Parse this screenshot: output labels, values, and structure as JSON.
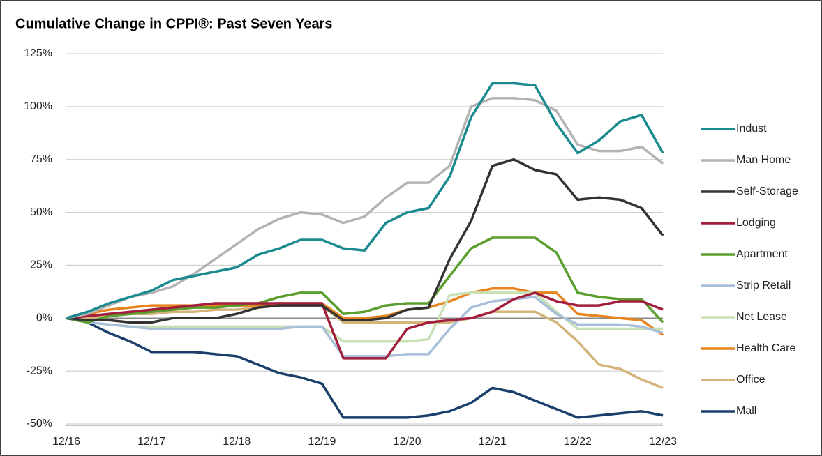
{
  "chart_data": {
    "type": "line",
    "title": "Cumulative Change in CPPI®: Past Seven Years",
    "categories": [
      "12/16",
      null,
      null,
      null,
      "12/17",
      null,
      null,
      null,
      "12/18",
      null,
      null,
      null,
      "12/19",
      null,
      null,
      null,
      "12/20",
      null,
      null,
      null,
      "12/21",
      null,
      null,
      null,
      "12/22",
      null,
      null,
      null,
      "12/23"
    ],
    "ylim": [
      -50,
      125
    ],
    "yticks": [
      {
        "value": -50,
        "label": "-50%"
      },
      {
        "value": -25,
        "label": "-25%"
      },
      {
        "value": 0,
        "label": "0%"
      },
      {
        "value": 25,
        "label": "25%"
      },
      {
        "value": 50,
        "label": "50%"
      },
      {
        "value": 75,
        "label": "75%"
      },
      {
        "value": 100,
        "label": "100%"
      },
      {
        "value": 125,
        "label": "125%"
      }
    ],
    "grid": true,
    "legend": "right",
    "series": [
      {
        "name": "Indust",
        "color": "#1b8a8f",
        "values": [
          0,
          3,
          7,
          10,
          13,
          18,
          20,
          22,
          24,
          30,
          33,
          37,
          37,
          33,
          32,
          45,
          50,
          52,
          67,
          95,
          111,
          111,
          110,
          92,
          78,
          84,
          93,
          96,
          78
        ]
      },
      {
        "name": "Man Home",
        "color": "#b3b3b3",
        "values": [
          0,
          2,
          6,
          10,
          12,
          15,
          21,
          28,
          35,
          42,
          47,
          50,
          49,
          45,
          48,
          57,
          64,
          64,
          72,
          100,
          104,
          104,
          103,
          98,
          82,
          79,
          79,
          81,
          73
        ]
      },
      {
        "name": "Self-Storage",
        "color": "#333333",
        "values": [
          0,
          -1,
          -1,
          -2,
          -2,
          0,
          0,
          0,
          2,
          5,
          6,
          6,
          6,
          -1,
          -1,
          0,
          4,
          5,
          28,
          46,
          72,
          75,
          70,
          68,
          56,
          57,
          56,
          52,
          39
        ]
      },
      {
        "name": "Lodging",
        "color": "#a31d3c",
        "values": [
          0,
          1,
          2,
          3,
          4,
          5,
          6,
          7,
          7,
          7,
          7,
          7,
          7,
          -19,
          -19,
          -19,
          -5,
          -2,
          -1,
          0,
          3,
          9,
          12,
          8,
          6,
          6,
          8,
          8,
          4
        ]
      },
      {
        "name": "Apartment",
        "color": "#5a9e2e",
        "values": [
          0,
          -2,
          1,
          2,
          3,
          4,
          5,
          5,
          6,
          7,
          10,
          12,
          12,
          2,
          3,
          6,
          7,
          7,
          20,
          33,
          38,
          38,
          38,
          31,
          12,
          10,
          9,
          9,
          -2
        ]
      },
      {
        "name": "Strip Retail",
        "color": "#a9bfd9",
        "values": [
          0,
          -2,
          -3,
          -4,
          -5,
          -5,
          -5,
          -5,
          -5,
          -5,
          -5,
          -4,
          -4,
          -18,
          -18,
          -18,
          -17,
          -17,
          -5,
          5,
          8,
          9,
          10,
          2,
          -3,
          -3,
          -3,
          -4,
          -7
        ]
      },
      {
        "name": "Net Lease",
        "color": "#c8e0b4",
        "values": [
          0,
          -2,
          -3,
          -4,
          -4,
          -4,
          -4,
          -4,
          -4,
          -4,
          -4,
          -4,
          -4,
          -11,
          -11,
          -11,
          -11,
          -10,
          11,
          12,
          12,
          12,
          12,
          3,
          -5,
          -5,
          -5,
          -5,
          -5
        ]
      },
      {
        "name": "Health Care",
        "color": "#e8841e",
        "values": [
          0,
          2,
          4,
          5,
          6,
          6,
          6,
          6,
          6,
          6,
          7,
          7,
          7,
          0,
          0,
          1,
          4,
          5,
          8,
          12,
          14,
          14,
          12,
          12,
          2,
          1,
          0,
          -1,
          -8
        ]
      },
      {
        "name": "Office",
        "color": "#d4b47a",
        "values": [
          0,
          0,
          1,
          2,
          2,
          3,
          3,
          4,
          4,
          5,
          6,
          6,
          6,
          -2,
          -2,
          -2,
          -2,
          -2,
          -2,
          0,
          3,
          3,
          3,
          -2,
          -11,
          -22,
          -24,
          -29,
          -33
        ]
      },
      {
        "name": "Mall",
        "color": "#1a3f6b",
        "values": [
          0,
          -2,
          -7,
          -11,
          -16,
          -16,
          -16,
          -17,
          -18,
          -22,
          -26,
          -28,
          -31,
          -47,
          -47,
          -47,
          -47,
          -46,
          -44,
          -40,
          -33,
          -35,
          -39,
          -43,
          -47,
          -46,
          -45,
          -44,
          -46
        ]
      }
    ]
  }
}
